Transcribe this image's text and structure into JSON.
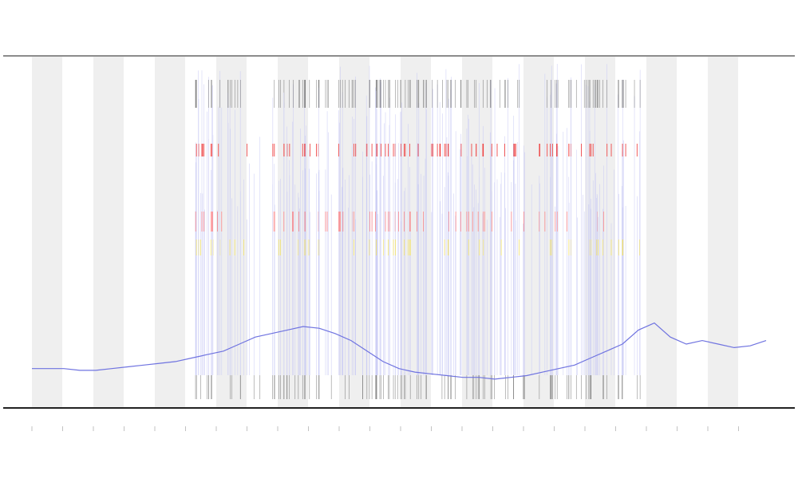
{
  "chart_data": {
    "type": "line",
    "x": [
      0,
      1,
      2,
      3,
      4,
      5,
      6,
      7,
      8,
      9,
      10,
      11,
      12,
      13,
      14,
      15,
      16,
      17,
      18,
      19,
      20,
      21,
      22,
      23,
      24,
      25,
      26,
      27,
      28,
      29,
      30,
      31,
      32,
      33,
      34,
      35,
      36,
      37,
      38,
      39,
      40,
      41,
      42,
      43,
      44,
      45,
      46
    ],
    "series": [
      {
        "color": "#6f73e0",
        "values": [
          11,
          11,
          11,
          10.5,
          10.5,
          11,
          11.5,
          12,
          12.5,
          13,
          14,
          15,
          16,
          18,
          20,
          21,
          22,
          23,
          22.5,
          21,
          19,
          16,
          13,
          11,
          10,
          9.5,
          9,
          8.5,
          8.5,
          8,
          8.5,
          9,
          10,
          11,
          12,
          14,
          16,
          18,
          22,
          24,
          20,
          18,
          19,
          18,
          17,
          17.5,
          19
        ]
      }
    ],
    "xlim": [
      0,
      46
    ],
    "ylim": [
      0,
      100
    ]
  }
}
